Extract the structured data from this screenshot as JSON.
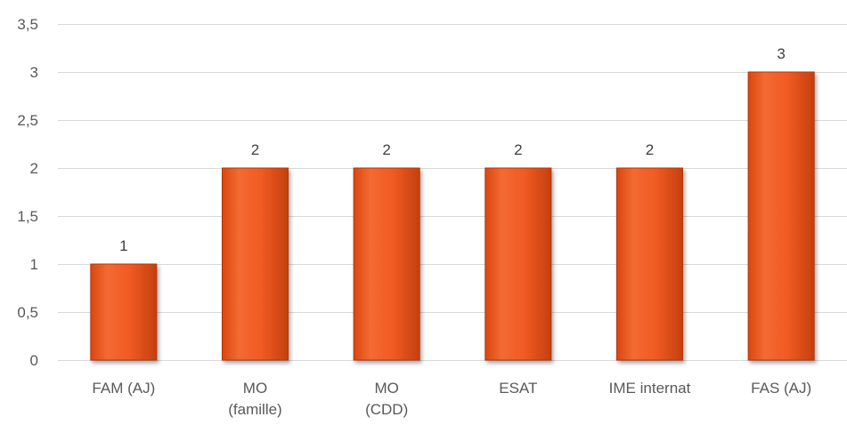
{
  "chart_data": {
    "type": "bar",
    "title": "",
    "xlabel": "",
    "ylabel": "",
    "categories": [
      [
        "FAM (AJ)"
      ],
      [
        "MO",
        "(famille)"
      ],
      [
        "MO",
        "(CDD)"
      ],
      [
        "ESAT"
      ],
      [
        "IME internat"
      ],
      [
        "FAS (AJ)"
      ]
    ],
    "values": [
      1,
      2,
      2,
      2,
      2,
      3
    ],
    "data_labels": [
      "1",
      "2",
      "2",
      "2",
      "2",
      "3"
    ],
    "ylim": [
      0,
      3.5
    ],
    "yticks": [
      0,
      0.5,
      1,
      1.5,
      2,
      2.5,
      3,
      3.5
    ],
    "ytick_labels": [
      "0",
      "0,5",
      "1",
      "1,5",
      "2",
      "2,5",
      "3",
      "3,5"
    ],
    "grid": true,
    "legend": "none",
    "colors": {
      "bar": "#f05a22",
      "bar_edge": "#b5350a",
      "grid": "#d9d9d9",
      "text": "#595959"
    }
  }
}
